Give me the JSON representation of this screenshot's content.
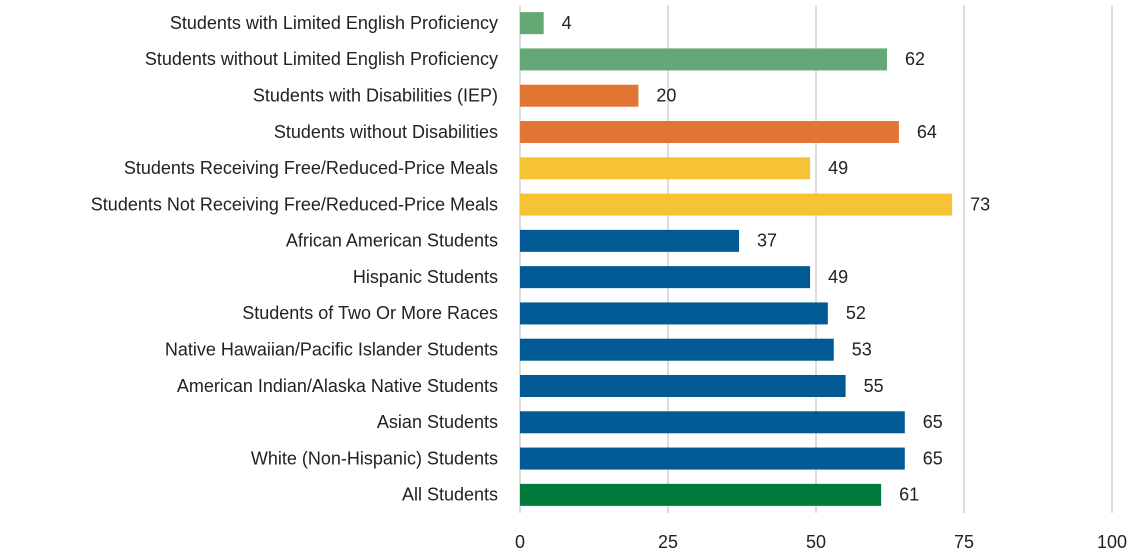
{
  "chart_data": {
    "type": "barh",
    "categories": [
      "Students with Limited English Proficiency",
      "Students without Limited English Proficiency",
      "Students with Disabilities (IEP)",
      "Students without Disabilities",
      "Students Receiving Free/Reduced-Price Meals",
      "Students Not Receiving Free/Reduced-Price Meals",
      "African American Students",
      "Hispanic Students",
      "Students of Two Or More Races",
      "Native Hawaiian/Pacific Islander Students",
      "American Indian/Alaska Native Students",
      "Asian Students",
      "White (Non-Hispanic) Students",
      "All Students"
    ],
    "values": [
      4,
      62,
      20,
      64,
      49,
      73,
      37,
      49,
      52,
      53,
      55,
      65,
      65,
      61
    ],
    "colors": [
      "#63a875",
      "#63a875",
      "#e07534",
      "#e07534",
      "#f6c236",
      "#f6c236",
      "#015a93",
      "#015a93",
      "#015a93",
      "#015a93",
      "#015a93",
      "#015a93",
      "#015a93",
      "#017a3c"
    ],
    "xlim": [
      0,
      100
    ],
    "xticks": [
      0,
      25,
      50,
      75,
      100
    ],
    "grid": true
  }
}
